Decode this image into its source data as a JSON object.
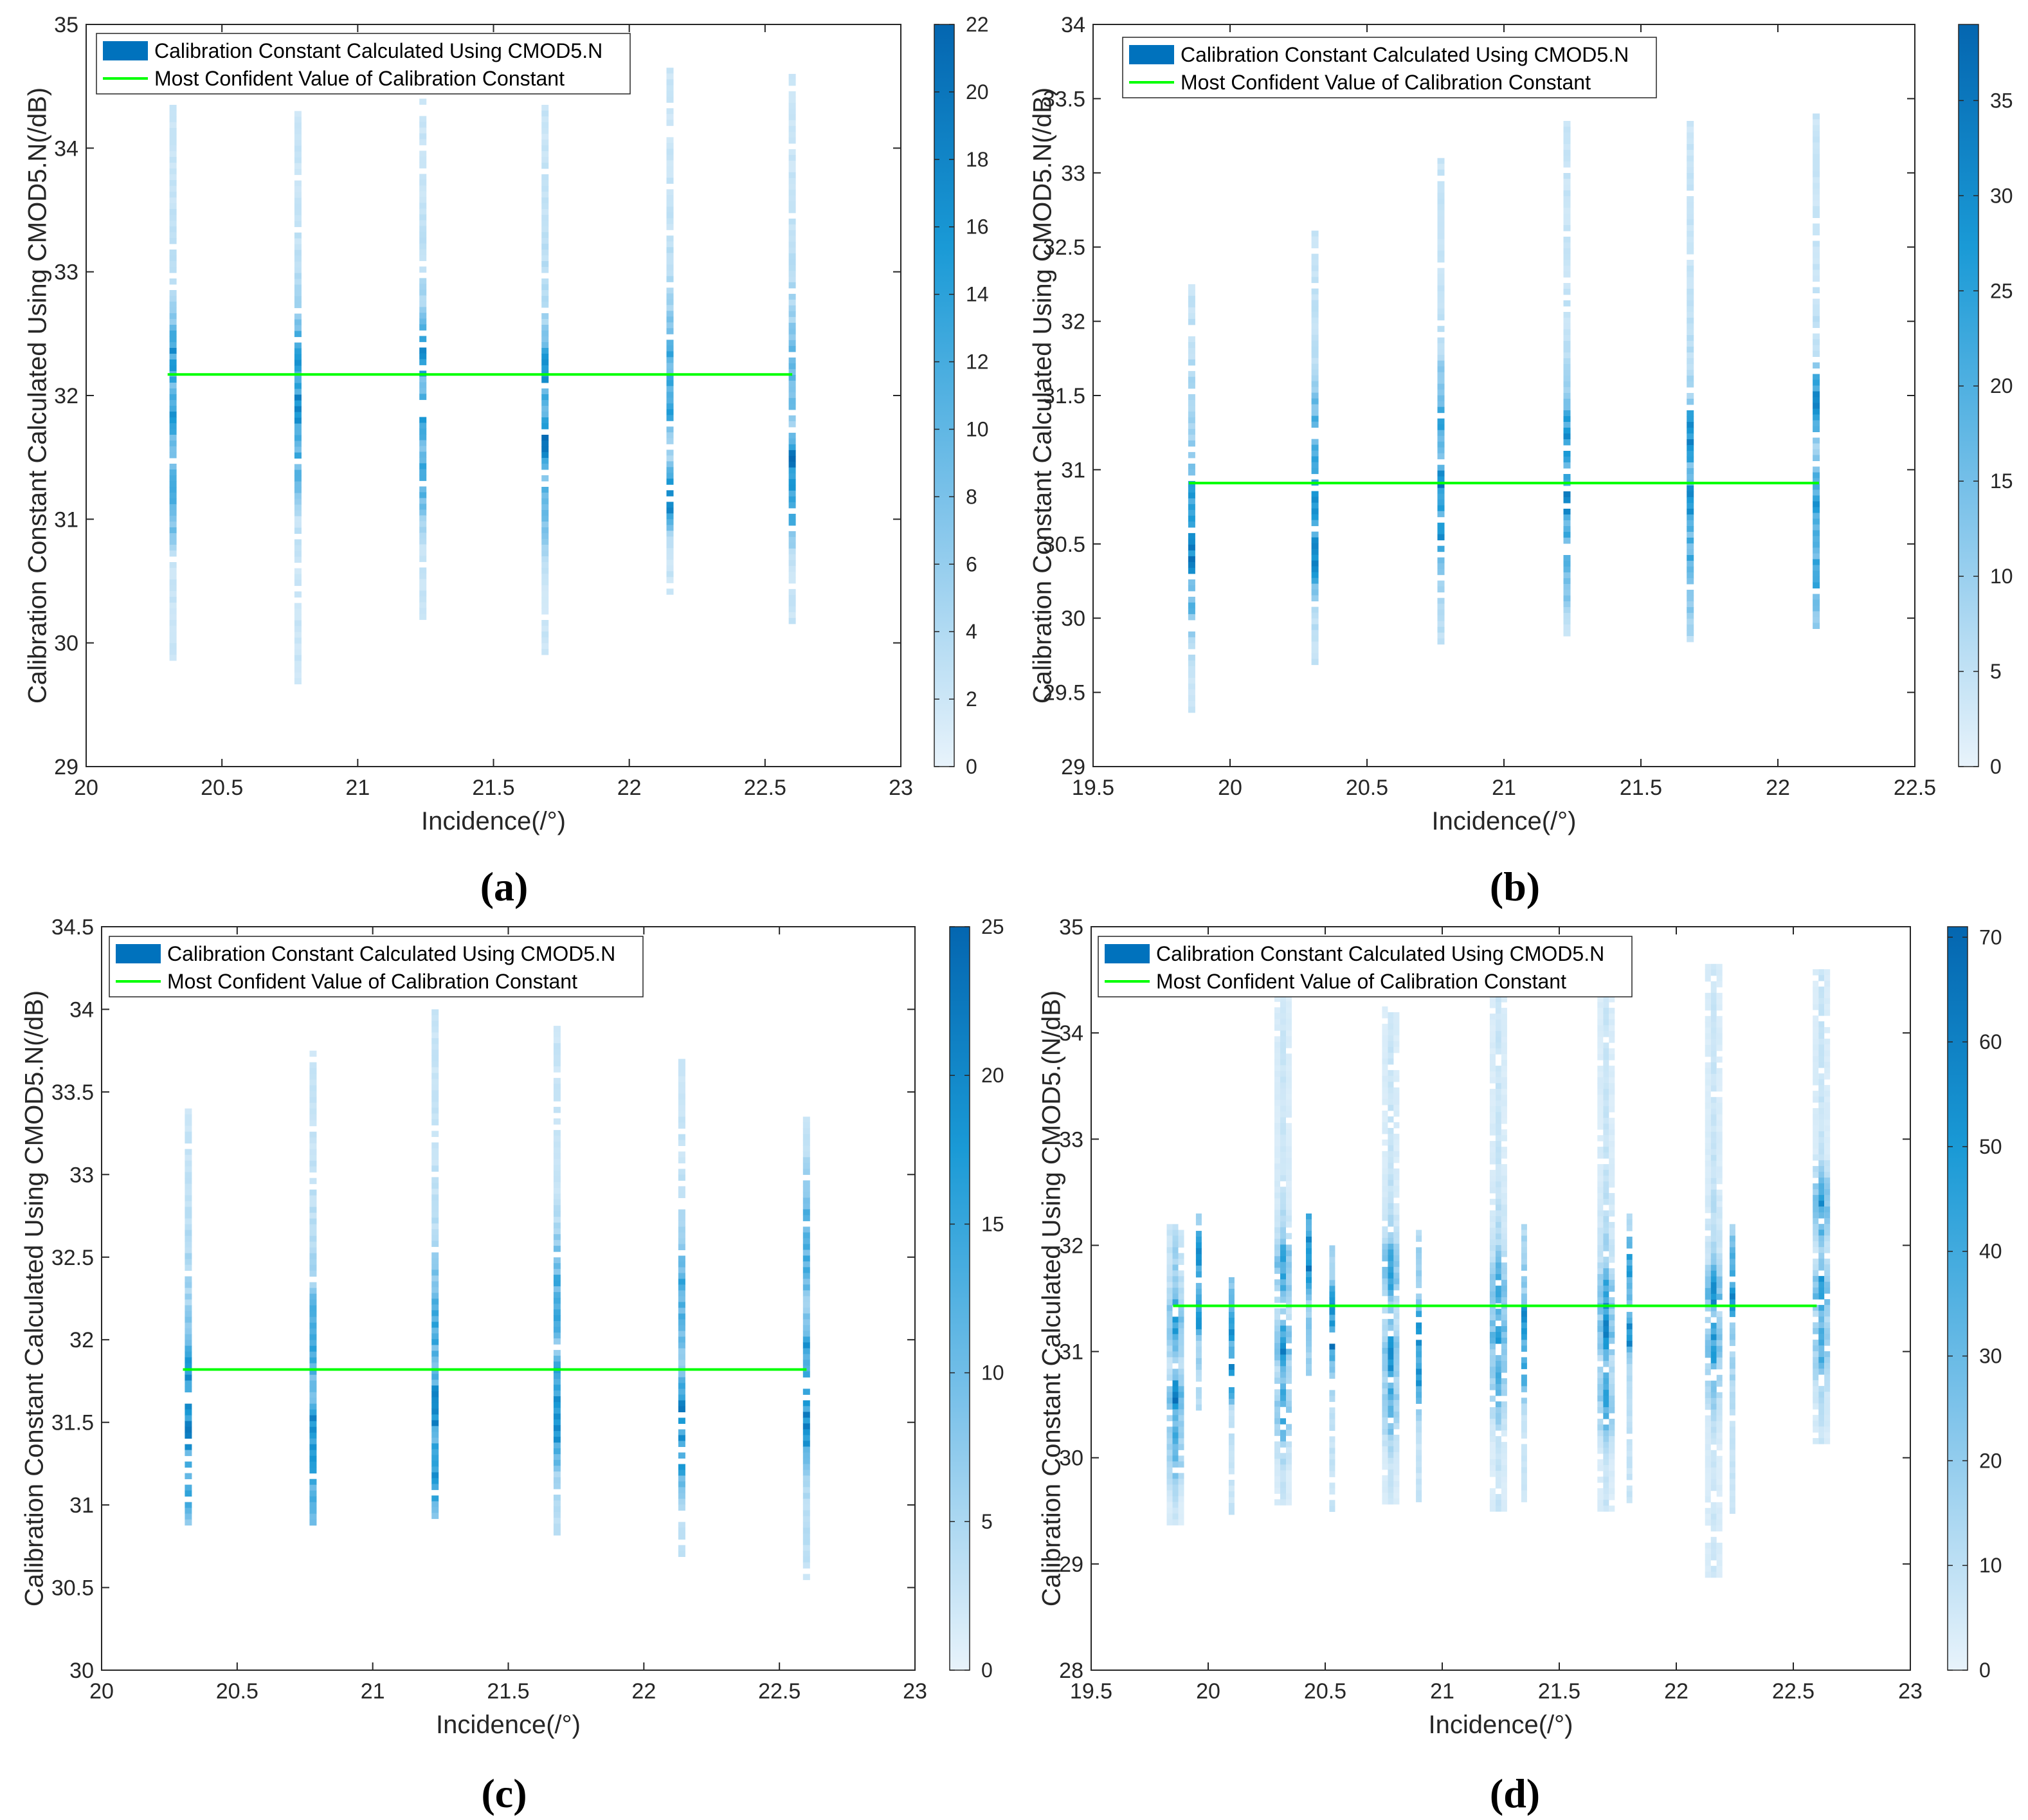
{
  "chart_data": [
    {
      "panel": "(a)",
      "type": "heatmap",
      "xlabel": "Incidence(/°)",
      "ylabel": "Calibration Constant Calculated Using CMOD5.N(/dB)",
      "xlim": [
        20,
        23
      ],
      "ylim": [
        29,
        35
      ],
      "xticks": [
        "20",
        "20.5",
        "21",
        "21.5",
        "22",
        "22.5",
        "23"
      ],
      "yticks": [
        "29",
        "30",
        "31",
        "32",
        "33",
        "34",
        "35"
      ],
      "colorbar": {
        "min": 0,
        "max": 22,
        "ticks": [
          "0",
          "2",
          "4",
          "6",
          "8",
          "10",
          "12",
          "14",
          "16",
          "18",
          "20",
          "22"
        ]
      },
      "legend": [
        "Calibration Constant Calculated Using CMOD5.N",
        "Most Confident Value of Calibration Constant"
      ],
      "most_confident_value": 32.17,
      "line_x_range": [
        20.3,
        22.6
      ],
      "columns": [
        {
          "x": 20.32,
          "ymin": 29.85,
          "ymax": 34.35,
          "peaks": [
            31.85,
            32.35,
            31.25
          ]
        },
        {
          "x": 20.78,
          "ymin": 29.7,
          "ymax": 34.3,
          "peaks": [
            31.95,
            32.35,
            31.6
          ]
        },
        {
          "x": 21.24,
          "ymin": 30.2,
          "ymax": 34.4,
          "peaks": [
            31.85,
            32.35,
            31.4
          ]
        },
        {
          "x": 21.69,
          "ymin": 29.95,
          "ymax": 34.35,
          "peaks": [
            31.65,
            32.2,
            31.2
          ]
        },
        {
          "x": 22.15,
          "ymin": 30.4,
          "ymax": 34.65,
          "peaks": [
            31.2,
            32.0,
            32.3
          ]
        },
        {
          "x": 22.6,
          "ymin": 30.2,
          "ymax": 34.6,
          "peaks": [
            31.5,
            31.2,
            32.2
          ]
        }
      ]
    },
    {
      "panel": "(b)",
      "type": "heatmap",
      "xlabel": "Incidence(/°)",
      "ylabel": "Calibration Constant Calculated Using CMOD5.N(/dB)",
      "xlim": [
        19.5,
        22.5
      ],
      "ylim": [
        29,
        34
      ],
      "xticks": [
        "19.5",
        "20",
        "20.5",
        "21",
        "21.5",
        "22",
        "22.5"
      ],
      "yticks": [
        "29",
        "29.5",
        "30",
        "30.5",
        "31",
        "31.5",
        "32",
        "32.5",
        "33",
        "33.5",
        "34"
      ],
      "colorbar": {
        "min": 0,
        "max": 39,
        "ticks": [
          "0",
          "5",
          "10",
          "15",
          "20",
          "25",
          "30",
          "35"
        ]
      },
      "legend": [
        "Calibration Constant Calculated Using CMOD5.N",
        "Most Confident Value of Calibration Constant"
      ],
      "most_confident_value": 30.91,
      "line_x_range": [
        19.85,
        22.15
      ],
      "columns": [
        {
          "x": 19.86,
          "ymin": 29.4,
          "ymax": 32.25,
          "peaks": [
            30.45,
            30.75,
            30.3
          ]
        },
        {
          "x": 20.31,
          "ymin": 29.7,
          "ymax": 32.65,
          "peaks": [
            30.45,
            30.8,
            31.2
          ]
        },
        {
          "x": 20.77,
          "ymin": 29.85,
          "ymax": 33.1,
          "peaks": [
            30.9,
            30.6,
            31.3
          ]
        },
        {
          "x": 21.23,
          "ymin": 29.9,
          "ymax": 33.35,
          "peaks": [
            30.85,
            31.2,
            30.5
          ]
        },
        {
          "x": 21.68,
          "ymin": 29.85,
          "ymax": 33.35,
          "peaks": [
            31.25,
            30.8,
            30.4
          ]
        },
        {
          "x": 22.14,
          "ymin": 29.9,
          "ymax": 33.4,
          "peaks": [
            31.45,
            30.8,
            30.35
          ]
        }
      ]
    },
    {
      "panel": "(c)",
      "type": "heatmap",
      "xlabel": "Incidence(/°)",
      "ylabel": "Calibration Constant Calculated Using CMOD5.N(/dB)",
      "xlim": [
        20,
        23
      ],
      "ylim": [
        30,
        34.5
      ],
      "xticks": [
        "20",
        "20.5",
        "21",
        "21.5",
        "22",
        "22.5",
        "23"
      ],
      "yticks": [
        "30",
        "30.5",
        "31",
        "31.5",
        "32",
        "32.5",
        "33",
        "33.5",
        "34",
        "34.5"
      ],
      "colorbar": {
        "min": 0,
        "max": 25,
        "ticks": [
          "0",
          "5",
          "10",
          "15",
          "20",
          "25"
        ]
      },
      "legend": [
        "Calibration Constant Calculated Using CMOD5.N",
        "Most Confident Value of Calibration Constant"
      ],
      "most_confident_value": 31.82,
      "line_x_range": [
        20.3,
        22.6
      ],
      "columns": [
        {
          "x": 20.32,
          "ymin": 30.9,
          "ymax": 33.4,
          "peaks": [
            31.5,
            31.8,
            31.2
          ]
        },
        {
          "x": 20.78,
          "ymin": 30.9,
          "ymax": 33.75,
          "peaks": [
            31.45,
            32.0,
            31.25
          ]
        },
        {
          "x": 21.23,
          "ymin": 30.95,
          "ymax": 34.0,
          "peaks": [
            31.6,
            31.25,
            32.1
          ]
        },
        {
          "x": 21.68,
          "ymin": 30.85,
          "ymax": 33.9,
          "peaks": [
            31.5,
            31.65,
            32.25
          ]
        },
        {
          "x": 22.14,
          "ymin": 30.7,
          "ymax": 33.7,
          "peaks": [
            31.6,
            31.4,
            32.3
          ]
        },
        {
          "x": 22.6,
          "ymin": 30.55,
          "ymax": 33.35,
          "peaks": [
            31.5,
            31.9,
            32.6
          ]
        }
      ]
    },
    {
      "panel": "(d)",
      "type": "heatmap",
      "xlabel": "Incidence(/°)",
      "ylabel": "Calibration Constant Calculated Using CMOD5.(N/dB)",
      "xlim": [
        19.5,
        23
      ],
      "ylim": [
        28,
        35
      ],
      "xticks": [
        "19.5",
        "20",
        "20.5",
        "21",
        "21.5",
        "22",
        "22.5",
        "23"
      ],
      "yticks": [
        "28",
        "29",
        "30",
        "31",
        "32",
        "33",
        "34",
        "35"
      ],
      "colorbar": {
        "min": 0,
        "max": 71,
        "ticks": [
          "0",
          "10",
          "20",
          "30",
          "40",
          "50",
          "60",
          "70"
        ]
      },
      "legend": [
        "Calibration Constant Calculated Using CMOD5.N",
        "Most Confident Value of Calibration Constant"
      ],
      "most_confident_value": 31.43,
      "line_x_range": [
        19.85,
        22.6
      ],
      "columns": [
        {
          "x": 19.86,
          "ymin": 29.4,
          "ymax": 32.2,
          "peaks": [
            30.6,
            31.3,
            30.2
          ]
        },
        {
          "x": 19.96,
          "ymin": 30.5,
          "ymax": 32.3,
          "peaks": [
            31.4,
            31.9
          ]
        },
        {
          "x": 20.1,
          "ymin": 29.5,
          "ymax": 31.7,
          "peaks": [
            30.8,
            31.3
          ]
        },
        {
          "x": 20.32,
          "ymin": 29.6,
          "ymax": 34.35,
          "peaks": [
            31.1,
            31.8,
            30.5
          ]
        },
        {
          "x": 20.43,
          "ymin": 30.8,
          "ymax": 32.3,
          "peaks": [
            31.8,
            32.1
          ]
        },
        {
          "x": 20.53,
          "ymin": 29.5,
          "ymax": 32.0,
          "peaks": [
            31.1,
            31.4
          ]
        },
        {
          "x": 20.78,
          "ymin": 29.6,
          "ymax": 34.25,
          "peaks": [
            31.0,
            31.8,
            30.6
          ]
        },
        {
          "x": 20.9,
          "ymin": 29.6,
          "ymax": 32.2,
          "peaks": [
            31.2,
            30.8
          ]
        },
        {
          "x": 21.24,
          "ymin": 29.5,
          "ymax": 34.4,
          "peaks": [
            31.2,
            31.6,
            30.8
          ]
        },
        {
          "x": 21.35,
          "ymin": 29.6,
          "ymax": 32.2,
          "peaks": [
            31.3,
            30.9
          ]
        },
        {
          "x": 21.7,
          "ymin": 29.5,
          "ymax": 34.4,
          "peaks": [
            31.2,
            31.5,
            30.6
          ]
        },
        {
          "x": 21.8,
          "ymin": 29.6,
          "ymax": 32.3,
          "peaks": [
            31.2,
            31.8
          ]
        },
        {
          "x": 22.16,
          "ymin": 28.9,
          "ymax": 34.65,
          "peaks": [
            31.6,
            31.1,
            30.9
          ]
        },
        {
          "x": 22.24,
          "ymin": 29.5,
          "ymax": 32.2,
          "peaks": [
            31.5,
            31.8
          ]
        },
        {
          "x": 22.62,
          "ymin": 30.15,
          "ymax": 34.6,
          "peaks": [
            31.6,
            32.4,
            31.1
          ]
        }
      ]
    }
  ]
}
